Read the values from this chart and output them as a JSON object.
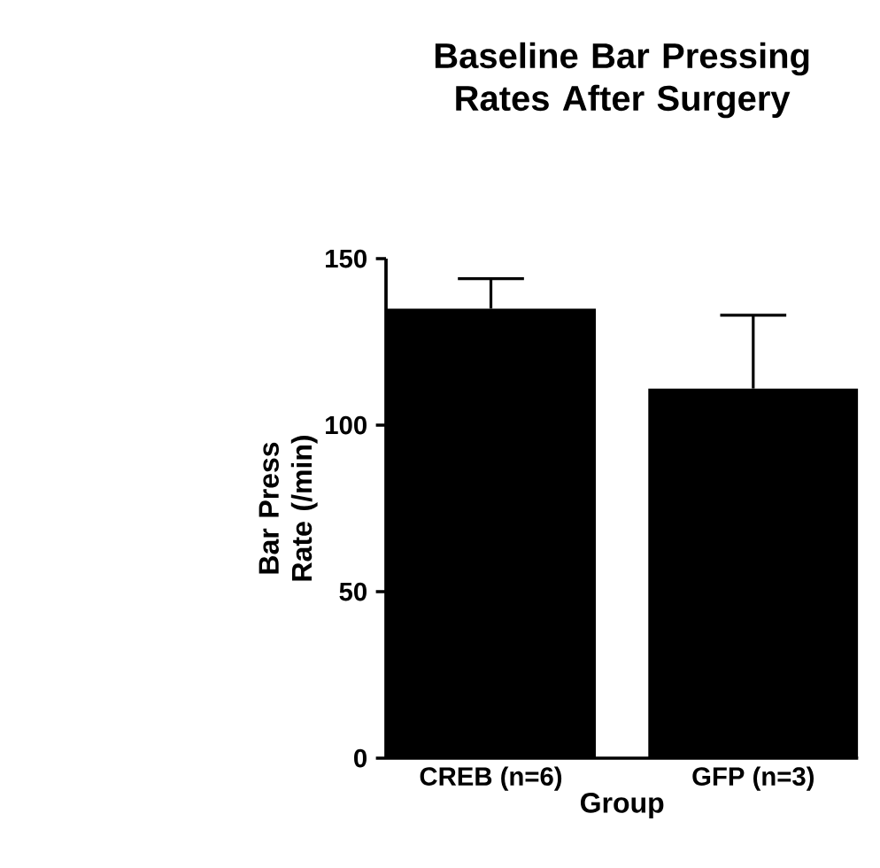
{
  "chart_data": {
    "type": "bar",
    "title": "Baseline Bar Pressing Rates After Surgery",
    "xlabel": "Group",
    "ylabel": "Bar Press Rate (/min)",
    "categories": [
      "CREB (n=6)",
      "GFP (n=3)"
    ],
    "values": [
      135,
      111
    ],
    "errors": [
      9,
      22
    ],
    "color": "#000000",
    "ylim": [
      0,
      150
    ],
    "yticks": [
      0,
      50,
      100,
      150
    ],
    "grid": false
  }
}
